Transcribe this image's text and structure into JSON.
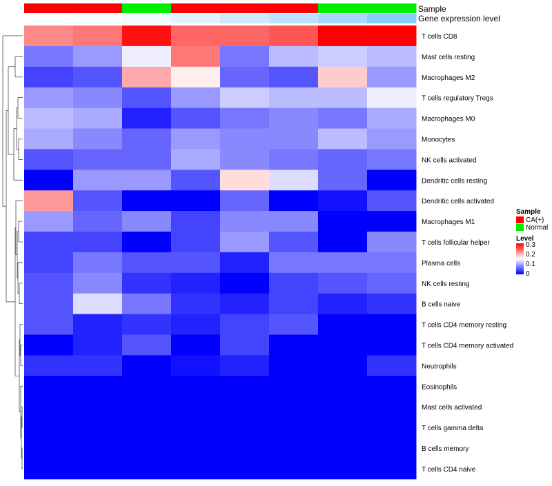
{
  "chart_data": {
    "type": "heatmap",
    "title": "",
    "xlabel": "",
    "ylabel": "",
    "columns": 8,
    "annotations": {
      "sample": {
        "label": "Sample",
        "values": [
          "CA(+)",
          "CA(+)",
          "Normal",
          "CA(+)",
          "CA(+)",
          "CA(+)",
          "Normal",
          "Normal"
        ],
        "colors": {
          "CA(+)": "#ff0000",
          "Normal": "#00ee00"
        }
      },
      "gene_expression": {
        "label": "Gene expression level",
        "values": [
          0,
          0.05,
          0.1,
          0.25,
          0.4,
          0.55,
          0.75,
          1.0
        ],
        "low_color": "#ffffff",
        "high_color": "#87cefa"
      }
    },
    "rows": [
      {
        "name": "T cells CD8",
        "values": [
          0.22,
          0.23,
          0.29,
          0.24,
          0.24,
          0.25,
          0.3,
          0.3
        ]
      },
      {
        "name": "Mast cells resting",
        "values": [
          0.07,
          0.09,
          0.14,
          0.23,
          0.07,
          0.11,
          0.12,
          0.11
        ]
      },
      {
        "name": "Macrophages M2",
        "values": [
          0.04,
          0.05,
          0.2,
          0.16,
          0.06,
          0.05,
          0.18,
          0.09
        ]
      },
      {
        "name": "T cells regulatory  Tregs",
        "values": [
          0.09,
          0.08,
          0.05,
          0.09,
          0.12,
          0.11,
          0.11,
          0.14
        ]
      },
      {
        "name": "Macrophages M0",
        "values": [
          0.11,
          0.1,
          0.02,
          0.05,
          0.07,
          0.08,
          0.07,
          0.1
        ]
      },
      {
        "name": "Monocytes",
        "values": [
          0.1,
          0.08,
          0.06,
          0.09,
          0.08,
          0.08,
          0.11,
          0.09
        ]
      },
      {
        "name": "NK cells activated",
        "values": [
          0.05,
          0.06,
          0.06,
          0.1,
          0.08,
          0.07,
          0.06,
          0.07
        ]
      },
      {
        "name": "Dendritic cells resting",
        "values": [
          0.0,
          0.09,
          0.09,
          0.05,
          0.17,
          0.13,
          0.06,
          0.0
        ]
      },
      {
        "name": "Dendritic cells activated",
        "values": [
          0.21,
          0.05,
          0.0,
          0.0,
          0.06,
          0.0,
          0.01,
          0.05
        ]
      },
      {
        "name": "Macrophages M1",
        "values": [
          0.09,
          0.06,
          0.08,
          0.04,
          0.08,
          0.08,
          0.0,
          0.0
        ]
      },
      {
        "name": "T cells follicular helper",
        "values": [
          0.04,
          0.04,
          0.0,
          0.04,
          0.09,
          0.05,
          0.0,
          0.08
        ]
      },
      {
        "name": "Plasma cells",
        "values": [
          0.04,
          0.07,
          0.05,
          0.05,
          0.02,
          0.07,
          0.07,
          0.07
        ]
      },
      {
        "name": "NK cells resting",
        "values": [
          0.05,
          0.08,
          0.03,
          0.02,
          0.0,
          0.04,
          0.05,
          0.06
        ]
      },
      {
        "name": "B cells naive",
        "values": [
          0.05,
          0.13,
          0.07,
          0.03,
          0.02,
          0.04,
          0.02,
          0.03
        ]
      },
      {
        "name": "T cells CD4 memory resting",
        "values": [
          0.05,
          0.02,
          0.03,
          0.02,
          0.04,
          0.05,
          0.0,
          0.0
        ]
      },
      {
        "name": "T cells CD4 memory activated",
        "values": [
          0.0,
          0.02,
          0.05,
          0.0,
          0.04,
          0.0,
          0.0,
          0.0
        ]
      },
      {
        "name": "Neutrophils",
        "values": [
          0.03,
          0.03,
          0.0,
          0.01,
          0.02,
          0.0,
          0.0,
          0.03
        ]
      },
      {
        "name": "Eosinophils",
        "values": [
          0,
          0,
          0,
          0,
          0,
          0,
          0,
          0
        ]
      },
      {
        "name": "Mast cells activated",
        "values": [
          0,
          0,
          0,
          0,
          0,
          0,
          0,
          0
        ]
      },
      {
        "name": "T cells gamma delta",
        "values": [
          0,
          0,
          0,
          0,
          0,
          0,
          0,
          0
        ]
      },
      {
        "name": "B cells memory",
        "values": [
          0,
          0,
          0,
          0,
          0,
          0,
          0,
          0
        ]
      },
      {
        "name": "T cells CD4 naive",
        "values": [
          0,
          0,
          0,
          0,
          0,
          0,
          0,
          0
        ]
      }
    ],
    "color_scale": {
      "min": 0,
      "mid": 0.15,
      "max": 0.3,
      "low_color": "#0000ff",
      "mid_color": "#ffffff",
      "high_color": "#ff0000"
    },
    "legend": {
      "placement": "right",
      "sample_title": "Sample",
      "sample_items": [
        {
          "label": "CA(+)",
          "color": "#ff0000"
        },
        {
          "label": "Normal",
          "color": "#00ee00"
        }
      ],
      "level_title": "Level",
      "level_ticks": [
        "0.3",
        "0.2",
        "0.1",
        "0"
      ]
    },
    "row_dendrogram": true,
    "grid": false
  }
}
